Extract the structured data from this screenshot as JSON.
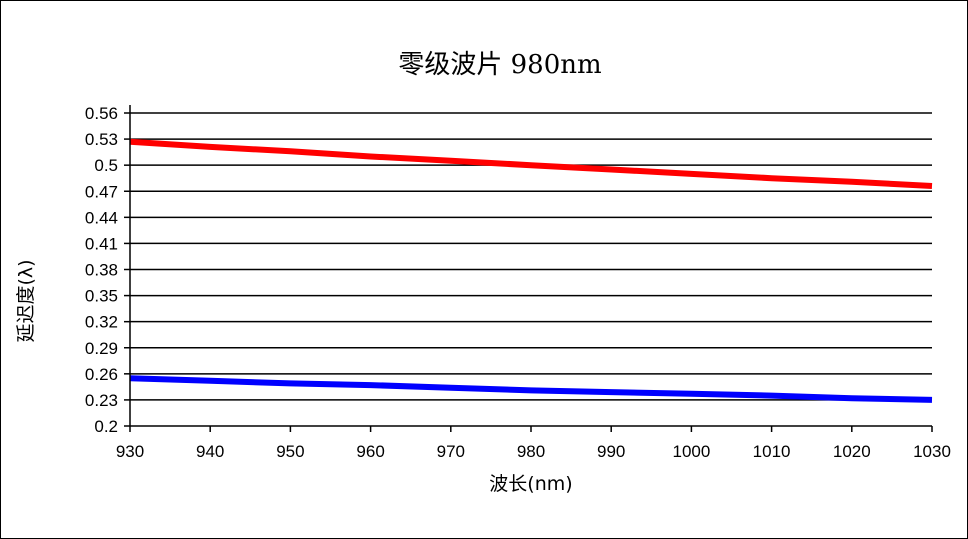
{
  "chart_data": {
    "type": "line",
    "title": "零级波片 980nm",
    "xlabel": "波长(nm)",
    "ylabel": "延迟度(λ)",
    "xlim": [
      930,
      1030
    ],
    "ylim": [
      0.2,
      0.56
    ],
    "x_ticks": [
      930,
      940,
      950,
      960,
      970,
      980,
      990,
      1000,
      1010,
      1020,
      1030
    ],
    "y_ticks": [
      "0.2",
      "0.23",
      "0.26",
      "0.29",
      "0.32",
      "0.35",
      "0.38",
      "0.41",
      "0.44",
      "0.47",
      "0.5",
      "0.53",
      "0.56"
    ],
    "y_tick_values": [
      0.2,
      0.23,
      0.26,
      0.29,
      0.32,
      0.35,
      0.38,
      0.41,
      0.44,
      0.47,
      0.5,
      0.53,
      0.56
    ],
    "grid": "horizontal",
    "legend": "none",
    "series": [
      {
        "color": "#ff0000",
        "x": [
          930,
          940,
          950,
          960,
          970,
          980,
          990,
          1000,
          1010,
          1020,
          1030
        ],
        "y": [
          0.527,
          0.521,
          0.516,
          0.51,
          0.505,
          0.5,
          0.495,
          0.49,
          0.485,
          0.481,
          0.476
        ]
      },
      {
        "color": "#0000ff",
        "x": [
          930,
          940,
          950,
          960,
          970,
          980,
          990,
          1000,
          1010,
          1020,
          1030
        ],
        "y": [
          0.255,
          0.252,
          0.249,
          0.247,
          0.244,
          0.241,
          0.239,
          0.237,
          0.235,
          0.232,
          0.23
        ]
      }
    ]
  }
}
